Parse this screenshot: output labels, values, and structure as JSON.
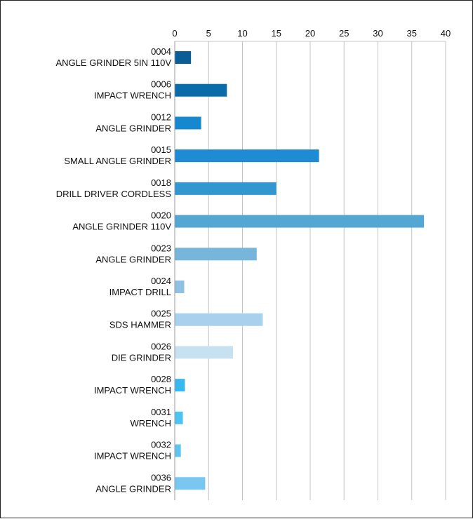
{
  "chart_data": {
    "type": "bar",
    "orientation": "horizontal",
    "title": "",
    "xlabel": "",
    "ylabel": "",
    "xlim": [
      0,
      40
    ],
    "x_ticks": [
      "0",
      "5",
      "10",
      "15",
      "20",
      "25",
      "30",
      "35",
      "40"
    ],
    "grid": true,
    "legend": "none",
    "categories": [
      [
        "0004",
        "ANGLE GRINDER 5IN 110V"
      ],
      [
        "0006",
        "IMPACT WRENCH"
      ],
      [
        "0012",
        "ANGLE GRINDER"
      ],
      [
        "0015",
        "SMALL ANGLE GRINDER"
      ],
      [
        "0018",
        "DRILL DRIVER CORDLESS"
      ],
      [
        "0020",
        "ANGLE GRINDER 110V"
      ],
      [
        "0023",
        "ANGLE GRINDER"
      ],
      [
        "0024",
        "IMPACT DRILL"
      ],
      [
        "0025",
        "SDS HAMMER"
      ],
      [
        "0026",
        "DIE GRINDER"
      ],
      [
        "0028",
        "IMPACT WRENCH"
      ],
      [
        "0031",
        "WRENCH"
      ],
      [
        "0032",
        "IMPACT WRENCH"
      ],
      [
        "0036",
        "ANGLE GRINDER"
      ]
    ],
    "values": [
      2.4,
      7.7,
      3.9,
      21.3,
      15.0,
      36.8,
      12.1,
      1.4,
      13.0,
      8.6,
      1.5,
      1.2,
      0.9,
      4.5
    ],
    "colors": [
      "#0a5d96",
      "#0b6aa8",
      "#1588cf",
      "#1f8bd4",
      "#3296d1",
      "#55a7d3",
      "#77b6da",
      "#8fc2e2",
      "#a7d1ec",
      "#c7e1f3",
      "#37b9ef",
      "#4cc3f2",
      "#5ec5f1",
      "#79c7f0"
    ]
  }
}
